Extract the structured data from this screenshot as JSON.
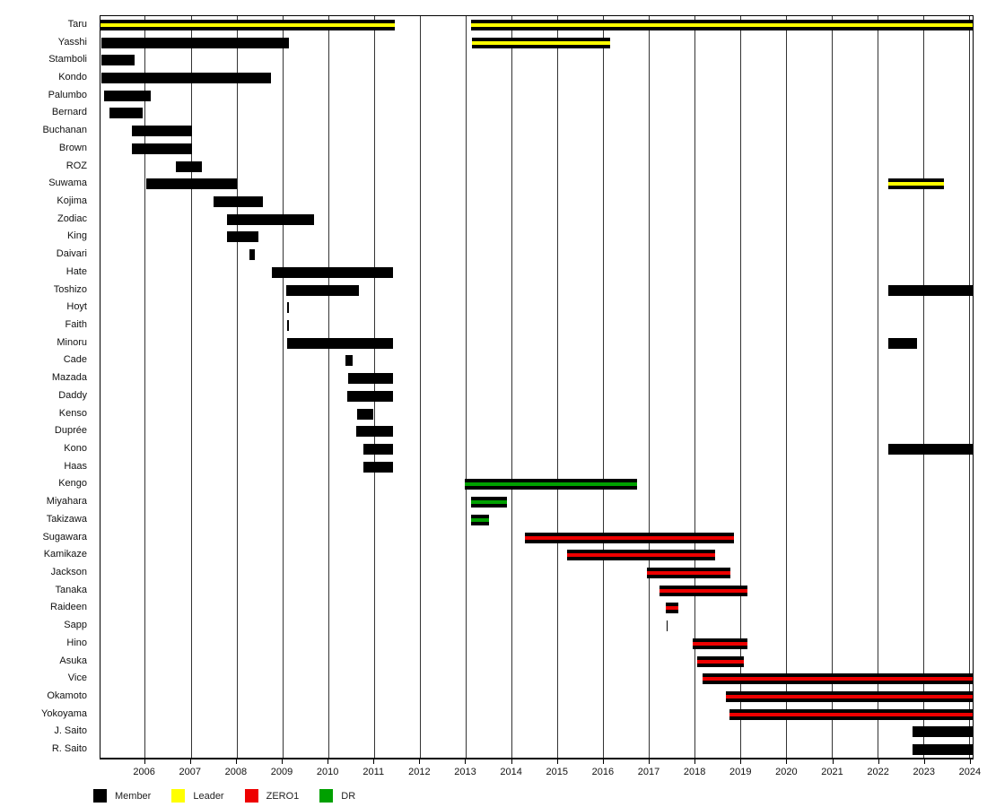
{
  "chart_data": {
    "type": "bar",
    "subtype": "horizontal-gantt-timeline",
    "title": "",
    "xlabel": "",
    "ylabel": "",
    "grid": true,
    "x_axis": {
      "min": 2005.03,
      "max": 2024.08,
      "ticks": [
        2006,
        2007,
        2008,
        2009,
        2010,
        2011,
        2012,
        2013,
        2014,
        2015,
        2016,
        2017,
        2018,
        2019,
        2020,
        2021,
        2022,
        2023,
        2024
      ]
    },
    "colors": {
      "member": "#000000",
      "leader": "#FFFF00",
      "zero1": "#EE0000",
      "dr": "#00A000"
    },
    "bar_style_note": "member bars are solid black; leader/zero1/dr bars are black with a colored horizontal stripe through the middle",
    "legend": [
      {
        "label": "Member",
        "type": "member"
      },
      {
        "label": "Leader",
        "type": "leader"
      },
      {
        "label": "ZERO1",
        "type": "zero1"
      },
      {
        "label": "DR",
        "type": "dr"
      }
    ],
    "legend_position": "bottom-left",
    "rows": [
      {
        "name": "Taru",
        "segments": [
          {
            "start": 2005.03,
            "end": 2011.46,
            "type": "leader"
          },
          {
            "start": 2013.12,
            "end": 2024.08,
            "type": "leader"
          }
        ]
      },
      {
        "name": "Yasshi",
        "segments": [
          {
            "start": 2005.05,
            "end": 2009.15,
            "type": "member"
          },
          {
            "start": 2013.15,
            "end": 2016.16,
            "type": "leader"
          }
        ]
      },
      {
        "name": "Stamboli",
        "segments": [
          {
            "start": 2005.05,
            "end": 2005.77,
            "type": "member"
          }
        ]
      },
      {
        "name": "Kondo",
        "segments": [
          {
            "start": 2005.05,
            "end": 2008.76,
            "type": "member"
          }
        ]
      },
      {
        "name": "Palumbo",
        "segments": [
          {
            "start": 2005.11,
            "end": 2006.12,
            "type": "member"
          }
        ]
      },
      {
        "name": "Bernard",
        "segments": [
          {
            "start": 2005.22,
            "end": 2005.95,
            "type": "member"
          }
        ]
      },
      {
        "name": "Buchanan",
        "segments": [
          {
            "start": 2005.71,
            "end": 2007.02,
            "type": "member"
          }
        ]
      },
      {
        "name": "Brown",
        "segments": [
          {
            "start": 2005.71,
            "end": 2007.02,
            "type": "member"
          }
        ]
      },
      {
        "name": "ROZ",
        "segments": [
          {
            "start": 2006.67,
            "end": 2007.24,
            "type": "member"
          }
        ]
      },
      {
        "name": "Suwama",
        "segments": [
          {
            "start": 2006.03,
            "end": 2008.0,
            "type": "member"
          },
          {
            "start": 2022.23,
            "end": 2023.45,
            "type": "leader"
          }
        ]
      },
      {
        "name": "Kojima",
        "segments": [
          {
            "start": 2007.49,
            "end": 2008.58,
            "type": "member"
          }
        ]
      },
      {
        "name": "Zodiac",
        "segments": [
          {
            "start": 2007.8,
            "end": 2009.7,
            "type": "member"
          }
        ]
      },
      {
        "name": "King",
        "segments": [
          {
            "start": 2007.8,
            "end": 2008.47,
            "type": "member"
          }
        ]
      },
      {
        "name": "Daivari",
        "segments": [
          {
            "start": 2008.29,
            "end": 2008.41,
            "type": "member"
          }
        ]
      },
      {
        "name": "Hate",
        "segments": [
          {
            "start": 2008.78,
            "end": 2011.42,
            "type": "member"
          }
        ]
      },
      {
        "name": "Toshizo",
        "segments": [
          {
            "start": 2009.09,
            "end": 2010.67,
            "type": "member"
          },
          {
            "start": 2022.23,
            "end": 2024.08,
            "type": "member"
          }
        ]
      },
      {
        "name": "Hoyt",
        "segments": [
          {
            "start": 2009.1,
            "end": 2009.15,
            "type": "member"
          }
        ]
      },
      {
        "name": "Faith",
        "segments": [
          {
            "start": 2009.1,
            "end": 2009.15,
            "type": "member"
          }
        ]
      },
      {
        "name": "Minoru",
        "segments": [
          {
            "start": 2009.11,
            "end": 2011.42,
            "type": "member"
          },
          {
            "start": 2022.23,
            "end": 2022.86,
            "type": "member"
          }
        ]
      },
      {
        "name": "Cade",
        "segments": [
          {
            "start": 2010.38,
            "end": 2010.54,
            "type": "member"
          }
        ]
      },
      {
        "name": "Mazada",
        "segments": [
          {
            "start": 2010.44,
            "end": 2011.42,
            "type": "member"
          }
        ]
      },
      {
        "name": "Daddy",
        "segments": [
          {
            "start": 2010.42,
            "end": 2011.42,
            "type": "member"
          }
        ]
      },
      {
        "name": "Kenso",
        "segments": [
          {
            "start": 2010.63,
            "end": 2010.99,
            "type": "member"
          }
        ]
      },
      {
        "name": "Duprée",
        "segments": [
          {
            "start": 2010.61,
            "end": 2011.42,
            "type": "member"
          }
        ]
      },
      {
        "name": "Kono",
        "segments": [
          {
            "start": 2010.77,
            "end": 2011.42,
            "type": "member"
          },
          {
            "start": 2022.23,
            "end": 2024.08,
            "type": "member"
          }
        ]
      },
      {
        "name": "Haas",
        "segments": [
          {
            "start": 2010.77,
            "end": 2011.42,
            "type": "member"
          }
        ]
      },
      {
        "name": "Kengo",
        "segments": [
          {
            "start": 2012.98,
            "end": 2016.75,
            "type": "dr"
          }
        ]
      },
      {
        "name": "Miyahara",
        "segments": [
          {
            "start": 2013.13,
            "end": 2013.9,
            "type": "dr"
          }
        ]
      },
      {
        "name": "Takizawa",
        "segments": [
          {
            "start": 2013.13,
            "end": 2013.51,
            "type": "dr"
          }
        ]
      },
      {
        "name": "Sugawara",
        "segments": [
          {
            "start": 2014.31,
            "end": 2018.86,
            "type": "zero1"
          }
        ]
      },
      {
        "name": "Kamikaze",
        "segments": [
          {
            "start": 2015.22,
            "end": 2018.45,
            "type": "zero1"
          }
        ]
      },
      {
        "name": "Jackson",
        "segments": [
          {
            "start": 2016.96,
            "end": 2018.78,
            "type": "zero1"
          }
        ]
      },
      {
        "name": "Tanaka",
        "segments": [
          {
            "start": 2017.24,
            "end": 2019.17,
            "type": "zero1"
          }
        ]
      },
      {
        "name": "Raideen",
        "segments": [
          {
            "start": 2017.38,
            "end": 2017.65,
            "type": "zero1"
          }
        ]
      },
      {
        "name": "Sapp",
        "segments": [
          {
            "start": 2017.39,
            "end": 2017.42,
            "type": "member"
          }
        ]
      },
      {
        "name": "Hino",
        "segments": [
          {
            "start": 2017.96,
            "end": 2019.17,
            "type": "zero1"
          }
        ]
      },
      {
        "name": "Asuka",
        "segments": [
          {
            "start": 2018.06,
            "end": 2019.09,
            "type": "zero1"
          }
        ]
      },
      {
        "name": "Vice",
        "segments": [
          {
            "start": 2018.19,
            "end": 2024.08,
            "type": "zero1"
          }
        ]
      },
      {
        "name": "Okamoto",
        "segments": [
          {
            "start": 2018.7,
            "end": 2024.08,
            "type": "zero1"
          }
        ]
      },
      {
        "name": "Yokoyama",
        "segments": [
          {
            "start": 2018.76,
            "end": 2024.08,
            "type": "zero1"
          }
        ]
      },
      {
        "name": "J. Saito",
        "segments": [
          {
            "start": 2022.76,
            "end": 2024.08,
            "type": "member"
          }
        ]
      },
      {
        "name": "R. Saito",
        "segments": [
          {
            "start": 2022.76,
            "end": 2024.08,
            "type": "member"
          }
        ]
      }
    ]
  }
}
